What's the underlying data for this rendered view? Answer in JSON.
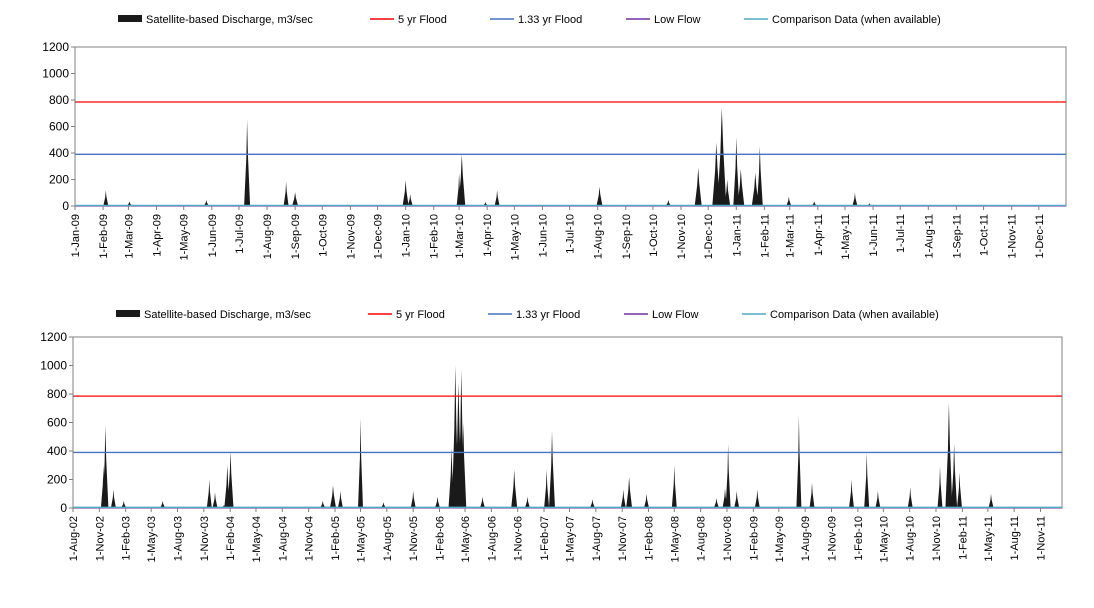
{
  "colors": {
    "discharge": "#1a1a1a",
    "flood5": "#ff0000",
    "flood133": "#4472c4",
    "lowflow": "#7030a0",
    "comparison": "#4bacc6"
  },
  "chart_data": [
    {
      "type": "area",
      "legend": [
        {
          "key": "discharge",
          "label": "Satellite-based Discharge, m3/sec"
        },
        {
          "key": "flood5",
          "label": "5 yr Flood"
        },
        {
          "key": "flood133",
          "label": "1.33 yr Flood"
        },
        {
          "key": "lowflow",
          "label": "Low Flow"
        },
        {
          "key": "comparison",
          "label": "Comparison Data (when available)"
        }
      ],
      "legend_placement": "top",
      "ylim": [
        0,
        1200
      ],
      "yticks": [
        0,
        200,
        400,
        600,
        800,
        1000,
        1200
      ],
      "x_start": "2009-01-01",
      "x_end": "2011-12-31",
      "xticks": [
        "1-Jan-09",
        "1-Feb-09",
        "1-Mar-09",
        "1-Apr-09",
        "1-May-09",
        "1-Jun-09",
        "1-Jul-09",
        "1-Aug-09",
        "1-Sep-09",
        "1-Oct-09",
        "1-Nov-09",
        "1-Dec-09",
        "1-Jan-10",
        "1-Feb-10",
        "1-Mar-10",
        "1-Apr-10",
        "1-May-10",
        "1-Jun-10",
        "1-Jul-10",
        "1-Aug-10",
        "1-Sep-10",
        "1-Oct-10",
        "1-Nov-10",
        "1-Dec-10",
        "1-Jan-11",
        "1-Feb-11",
        "1-Mar-11",
        "1-Apr-11",
        "1-May-11",
        "1-Jun-11",
        "1-Jul-11",
        "1-Aug-11",
        "1-Sep-11",
        "1-Oct-11",
        "1-Nov-11",
        "1-Dec-11"
      ],
      "lines": [
        {
          "key": "flood5",
          "value": 785
        },
        {
          "key": "flood133",
          "value": 390
        },
        {
          "key": "lowflow",
          "value": 0
        },
        {
          "key": "comparison",
          "value": 5
        }
      ],
      "peaks": [
        {
          "date": "2009-02-04",
          "value": 120,
          "width": 2
        },
        {
          "date": "2009-03-02",
          "value": 35,
          "width": 2
        },
        {
          "date": "2009-05-26",
          "value": 45,
          "width": 2
        },
        {
          "date": "2009-07-10",
          "value": 650,
          "width": 3
        },
        {
          "date": "2009-08-22",
          "value": 185,
          "width": 2
        },
        {
          "date": "2009-09-01",
          "value": 105,
          "width": 3
        },
        {
          "date": "2010-01-01",
          "value": 195,
          "width": 3
        },
        {
          "date": "2010-01-06",
          "value": 90,
          "width": 2
        },
        {
          "date": "2010-03-01",
          "value": 250,
          "width": 2
        },
        {
          "date": "2010-03-04",
          "value": 390,
          "width": 4
        },
        {
          "date": "2010-04-12",
          "value": 120,
          "width": 2
        },
        {
          "date": "2010-03-30",
          "value": 30,
          "width": 2
        },
        {
          "date": "2010-08-03",
          "value": 145,
          "width": 3
        },
        {
          "date": "2010-10-18",
          "value": 45,
          "width": 2
        },
        {
          "date": "2010-11-20",
          "value": 290,
          "width": 4
        },
        {
          "date": "2010-12-10",
          "value": 480,
          "width": 5
        },
        {
          "date": "2010-12-16",
          "value": 740,
          "width": 6
        },
        {
          "date": "2010-12-22",
          "value": 200,
          "width": 3
        },
        {
          "date": "2011-01-01",
          "value": 520,
          "width": 3
        },
        {
          "date": "2011-01-06",
          "value": 280,
          "width": 4
        },
        {
          "date": "2011-01-22",
          "value": 250,
          "width": 4
        },
        {
          "date": "2011-01-27",
          "value": 450,
          "width": 3
        },
        {
          "date": "2011-02-28",
          "value": 70,
          "width": 2
        },
        {
          "date": "2011-03-28",
          "value": 35,
          "width": 2
        },
        {
          "date": "2011-05-12",
          "value": 100,
          "width": 2
        },
        {
          "date": "2011-05-28",
          "value": 20,
          "width": 2
        }
      ]
    },
    {
      "type": "area",
      "legend": [
        {
          "key": "discharge",
          "label": "Satellite-based Discharge, m3/sec"
        },
        {
          "key": "flood5",
          "label": "5 yr Flood"
        },
        {
          "key": "flood133",
          "label": "1.33 yr Flood"
        },
        {
          "key": "lowflow",
          "label": "Low Flow"
        },
        {
          "key": "comparison",
          "label": "Comparison Data (when available)"
        }
      ],
      "legend_placement": "top",
      "ylim": [
        0,
        1200
      ],
      "yticks": [
        0,
        200,
        400,
        600,
        800,
        1000,
        1200
      ],
      "x_start": "2002-08-01",
      "x_end": "2012-01-15",
      "xticks": [
        "1-Aug-02",
        "1-Nov-02",
        "1-Feb-03",
        "1-May-03",
        "1-Aug-03",
        "1-Nov-03",
        "1-Feb-04",
        "1-May-04",
        "1-Aug-04",
        "1-Nov-04",
        "1-Feb-05",
        "1-May-05",
        "1-Aug-05",
        "1-Nov-05",
        "1-Feb-06",
        "1-May-06",
        "1-Aug-06",
        "1-Nov-06",
        "1-Feb-07",
        "1-May-07",
        "1-Aug-07",
        "1-Nov-07",
        "1-Feb-08",
        "1-May-08",
        "1-Aug-08",
        "1-Nov-08",
        "1-Feb-09",
        "1-May-09",
        "1-Aug-09",
        "1-Nov-09",
        "1-Feb-10",
        "1-May-10",
        "1-Aug-10",
        "1-Nov-10",
        "1-Feb-11",
        "1-May-11",
        "1-Aug-11",
        "1-Nov-11"
      ],
      "lines": [
        {
          "key": "flood5",
          "value": 785
        },
        {
          "key": "flood133",
          "value": 390
        },
        {
          "key": "lowflow",
          "value": 0
        },
        {
          "key": "comparison",
          "value": 5
        }
      ],
      "peaks": [
        {
          "date": "2002-11-15",
          "value": 300,
          "width": 2
        },
        {
          "date": "2002-11-22",
          "value": 580,
          "width": 3
        },
        {
          "date": "2002-12-20",
          "value": 130,
          "width": 2
        },
        {
          "date": "2003-01-25",
          "value": 50,
          "width": 2
        },
        {
          "date": "2003-06-10",
          "value": 50,
          "width": 2
        },
        {
          "date": "2003-11-20",
          "value": 200,
          "width": 2
        },
        {
          "date": "2003-12-10",
          "value": 110,
          "width": 2
        },
        {
          "date": "2004-01-10",
          "value": 20,
          "width": 2
        },
        {
          "date": "2004-01-22",
          "value": 300,
          "width": 3
        },
        {
          "date": "2004-02-02",
          "value": 400,
          "width": 3
        },
        {
          "date": "2004-01-30",
          "value": 250,
          "width": 2
        },
        {
          "date": "2004-12-20",
          "value": 50,
          "width": 2
        },
        {
          "date": "2005-01-25",
          "value": 160,
          "width": 3
        },
        {
          "date": "2005-02-20",
          "value": 120,
          "width": 2
        },
        {
          "date": "2005-05-01",
          "value": 630,
          "width": 2
        },
        {
          "date": "2005-07-20",
          "value": 40,
          "width": 2
        },
        {
          "date": "2005-11-01",
          "value": 120,
          "width": 2
        },
        {
          "date": "2006-01-25",
          "value": 80,
          "width": 2
        },
        {
          "date": "2006-03-15",
          "value": 420,
          "width": 3
        },
        {
          "date": "2006-03-28",
          "value": 1000,
          "width": 4
        },
        {
          "date": "2006-04-08",
          "value": 880,
          "width": 5
        },
        {
          "date": "2006-04-18",
          "value": 970,
          "width": 4
        },
        {
          "date": "2006-04-25",
          "value": 600,
          "width": 3
        },
        {
          "date": "2006-07-01",
          "value": 80,
          "width": 2
        },
        {
          "date": "2006-10-20",
          "value": 270,
          "width": 3
        },
        {
          "date": "2006-12-05",
          "value": 80,
          "width": 2
        },
        {
          "date": "2007-02-10",
          "value": 270,
          "width": 2
        },
        {
          "date": "2007-03-01",
          "value": 540,
          "width": 3
        },
        {
          "date": "2007-07-20",
          "value": 60,
          "width": 2
        },
        {
          "date": "2007-11-05",
          "value": 130,
          "width": 2
        },
        {
          "date": "2007-11-25",
          "value": 220,
          "width": 3
        },
        {
          "date": "2008-01-25",
          "value": 100,
          "width": 2
        },
        {
          "date": "2008-05-01",
          "value": 300,
          "width": 2
        },
        {
          "date": "2008-09-25",
          "value": 70,
          "width": 2
        },
        {
          "date": "2008-10-25",
          "value": 140,
          "width": 2
        },
        {
          "date": "2008-11-05",
          "value": 450,
          "width": 2
        },
        {
          "date": "2008-12-05",
          "value": 120,
          "width": 2
        },
        {
          "date": "2009-02-15",
          "value": 130,
          "width": 2
        },
        {
          "date": "2009-07-10",
          "value": 650,
          "width": 2
        },
        {
          "date": "2009-08-25",
          "value": 180,
          "width": 2
        },
        {
          "date": "2010-01-10",
          "value": 200,
          "width": 2
        },
        {
          "date": "2010-03-04",
          "value": 390,
          "width": 2
        },
        {
          "date": "2010-04-12",
          "value": 120,
          "width": 2
        },
        {
          "date": "2010-08-03",
          "value": 145,
          "width": 2
        },
        {
          "date": "2010-11-15",
          "value": 290,
          "width": 2
        },
        {
          "date": "2010-12-16",
          "value": 740,
          "width": 4
        },
        {
          "date": "2011-01-03",
          "value": 450,
          "width": 3
        },
        {
          "date": "2011-01-22",
          "value": 250,
          "width": 2
        },
        {
          "date": "2011-05-12",
          "value": 100,
          "width": 2
        }
      ]
    }
  ]
}
